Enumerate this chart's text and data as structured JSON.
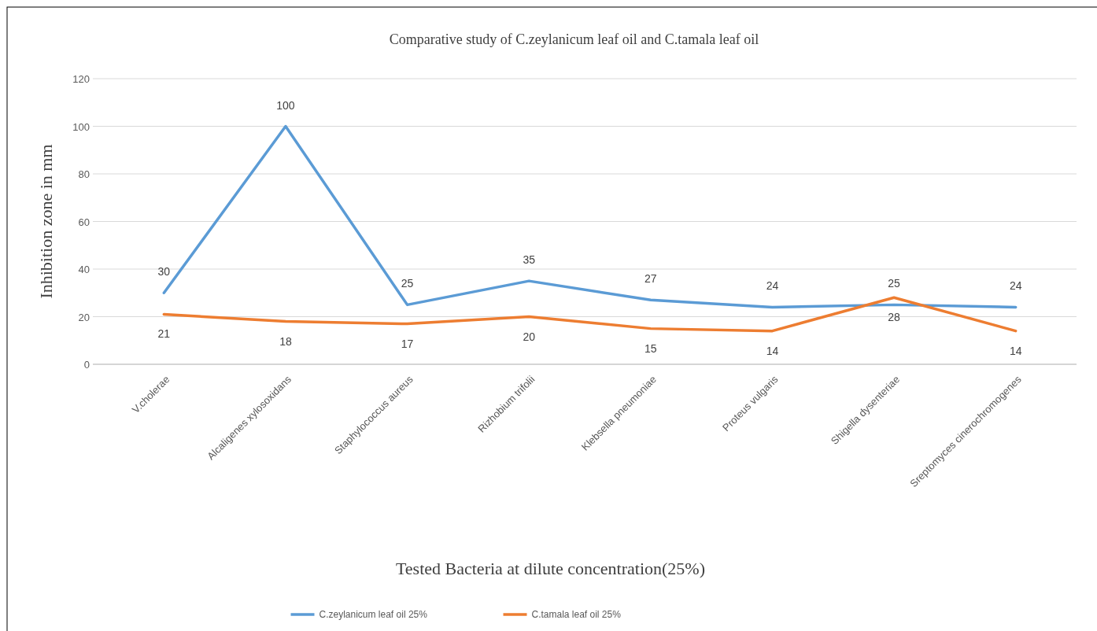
{
  "chart_data": {
    "type": "line",
    "title": "Comparative study of C.zeylanicum leaf oil and C.tamala leaf oil",
    "xlabel": "Tested Bacteria at dilute concentration(25%)",
    "ylabel": "Inhibition zone in mm",
    "categories": [
      "V.cholerae",
      "Alcaligenes xylosoxidans",
      "Staphylococcus aureus",
      "Rizhobium trifolii",
      "Klebsella pneumoniae",
      "Proteus vulgaris",
      "Shigella dysenteriae",
      "Sreptomyces cinerochromogenes"
    ],
    "series": [
      {
        "name": "C.zeylanicum leaf oil 25%",
        "color": "#5b9bd5",
        "values": [
          30,
          100,
          25,
          35,
          27,
          24,
          25,
          24
        ]
      },
      {
        "name": "C.tamala leaf oil 25%",
        "color": "#ed7d31",
        "values": [
          21,
          18,
          17,
          20,
          15,
          14,
          28,
          14
        ]
      }
    ],
    "ylim": [
      0,
      120
    ],
    "yticks": [
      0,
      20,
      40,
      60,
      80,
      100,
      120
    ],
    "grid": "y",
    "legend": "bottom",
    "data_labels": true,
    "marker": "none",
    "line_style": "solid"
  }
}
